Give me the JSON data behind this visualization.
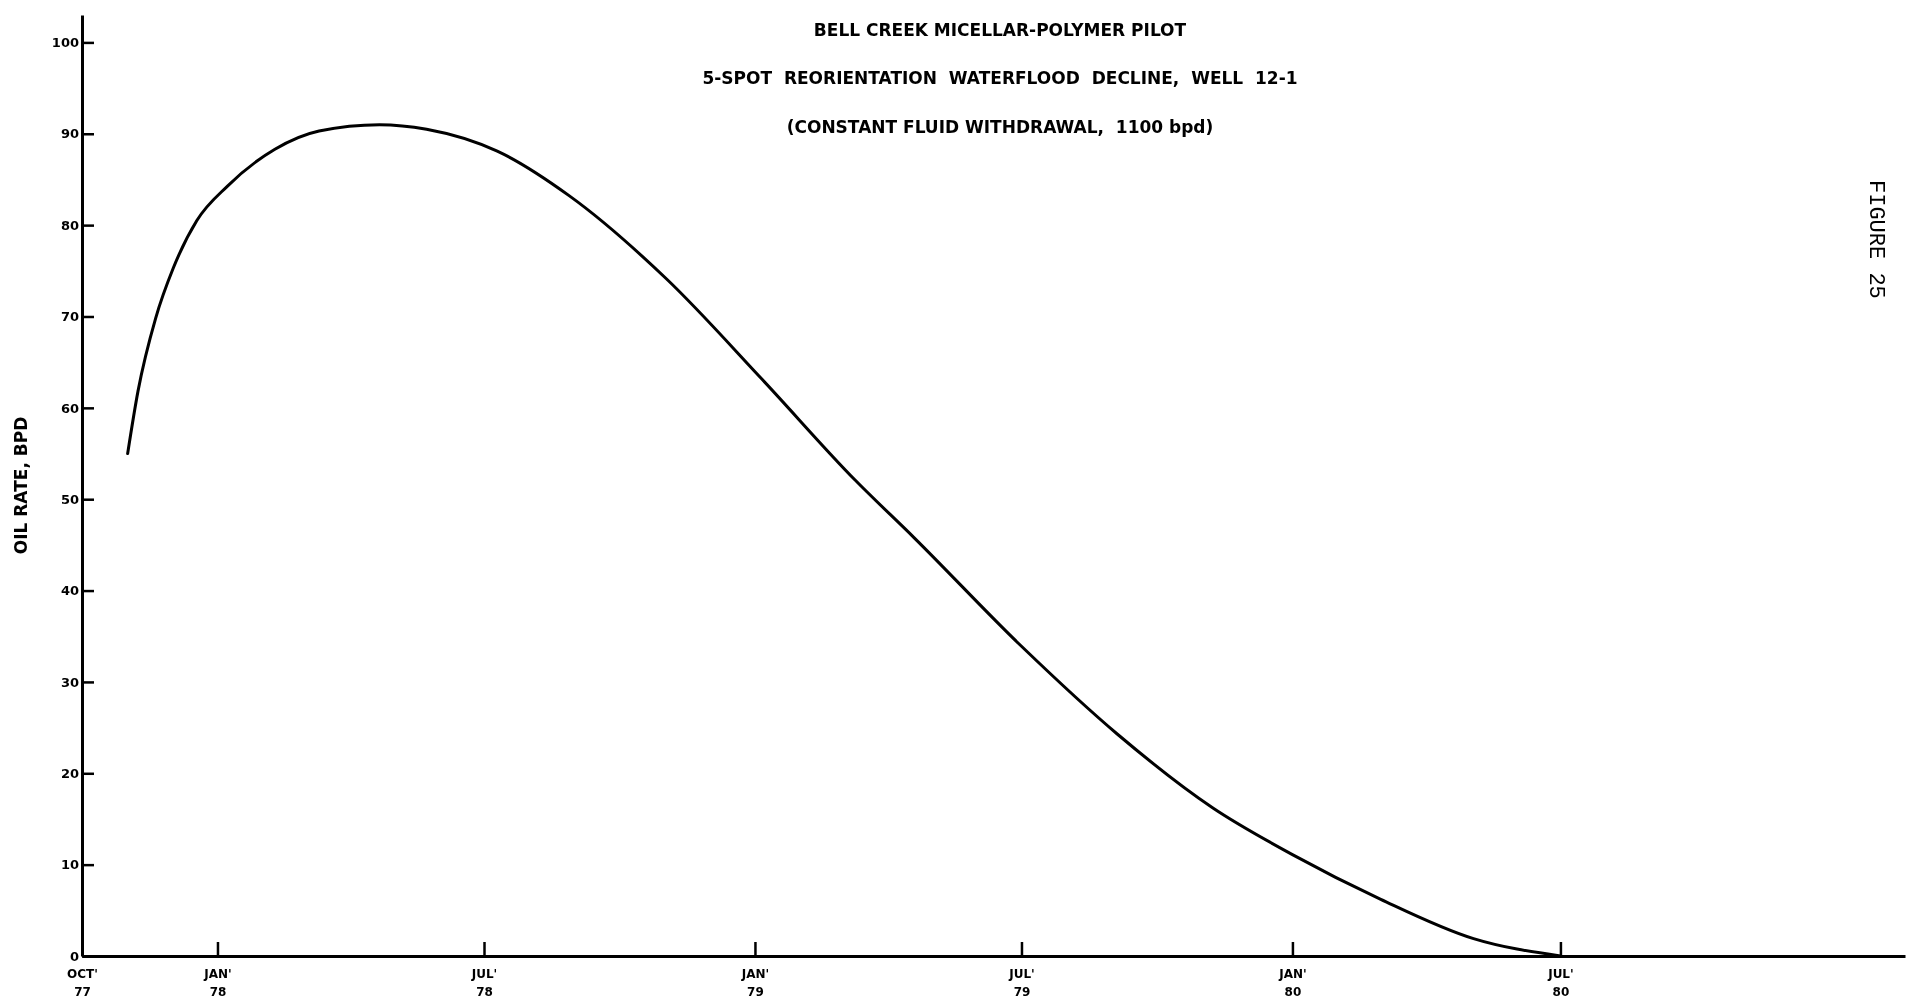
{
  "chart_data": {
    "type": "line",
    "title": "BELL CREEK MICELLAR-POLYMER PILOT",
    "subtitle": "5-SPOT  REORIENTATION  WATERFLOOD  DECLINE,  WELL  12-1\n(CONSTANT FLUID WITHDRAWAL,  1100 bpd)",
    "ylabel": "OIL RATE, BPD",
    "annotations": [
      "FIGURE 25"
    ],
    "x": [
      "1977-11-01",
      "1977-11-08",
      "1977-11-20",
      "1977-12-02",
      "1977-12-18",
      "1978-01-08",
      "1978-02-09",
      "1978-03-11",
      "1978-04-21",
      "1978-05-23",
      "1978-07-10",
      "1978-08-28",
      "1978-11-02",
      "1979-01-06",
      "1979-03-10",
      "1979-04-19",
      "1979-07-01",
      "1979-09-04",
      "1979-11-08",
      "1980-01-01",
      "1980-03-01",
      "1980-05-03",
      "1980-07-01"
    ],
    "series": [
      {
        "color": "#000000",
        "values": [
          55,
          61.8,
          69.8,
          75.3,
          80.5,
          84.3,
          88.3,
          90.3,
          91,
          90.5,
          88.1,
          83.2,
          74.1,
          63.1,
          52.1,
          45.8,
          33.9,
          24.3,
          16.2,
          11.1,
          6.2,
          1.9,
          0
        ]
      }
    ],
    "xlim": [
      "1977-10-01",
      "1981-02-20"
    ],
    "ylim": [
      0,
      103
    ],
    "xticks": [
      {
        "value": "1977-10-01",
        "label": "OCT'\n77"
      },
      {
        "value": "1978-01-01",
        "label": "JAN'\n78"
      },
      {
        "value": "1978-07-01",
        "label": "JUL'\n78"
      },
      {
        "value": "1979-01-01",
        "label": "JAN'\n79"
      },
      {
        "value": "1979-07-01",
        "label": "JUL'\n79"
      },
      {
        "value": "1980-01-01",
        "label": "JAN'\n80"
      },
      {
        "value": "1980-07-01",
        "label": "JUL'\n80"
      }
    ],
    "yticks": [
      0,
      10,
      20,
      30,
      40,
      50,
      60,
      70,
      80,
      90,
      100
    ],
    "grid": false,
    "marker": "none",
    "line_style": "solid"
  }
}
